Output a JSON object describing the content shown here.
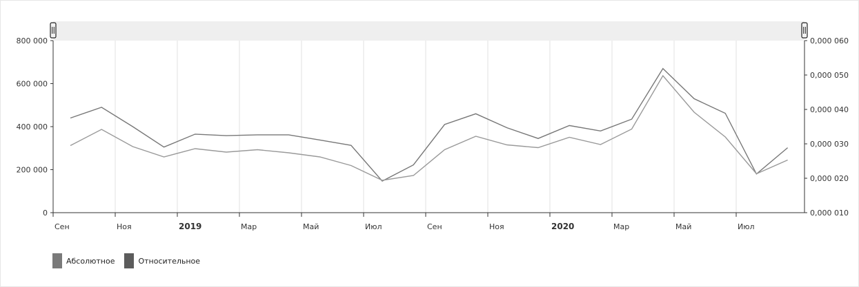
{
  "chart_data": {
    "type": "line",
    "x": [
      "2018-09",
      "2018-10",
      "2018-11",
      "2018-12",
      "2019-01",
      "2019-02",
      "2019-03",
      "2019-04",
      "2019-05",
      "2019-06",
      "2019-07",
      "2019-08",
      "2019-09",
      "2019-10",
      "2019-11",
      "2019-12",
      "2020-01",
      "2020-02",
      "2020-03",
      "2020-04",
      "2020-05",
      "2020-06",
      "2020-07",
      "2020-08"
    ],
    "x_tick_labels": [
      {
        "x": "2018-09",
        "label": "Сен",
        "bold": false
      },
      {
        "x": "2018-11",
        "label": "Ноя",
        "bold": false
      },
      {
        "x": "2019-01",
        "label": "2019",
        "bold": true
      },
      {
        "x": "2019-03",
        "label": "Мар",
        "bold": false
      },
      {
        "x": "2019-05",
        "label": "Май",
        "bold": false
      },
      {
        "x": "2019-07",
        "label": "Июл",
        "bold": false
      },
      {
        "x": "2019-09",
        "label": "Сен",
        "bold": false
      },
      {
        "x": "2019-11",
        "label": "Ноя",
        "bold": false
      },
      {
        "x": "2020-01",
        "label": "2020",
        "bold": true
      },
      {
        "x": "2020-03",
        "label": "Мар",
        "bold": false
      },
      {
        "x": "2020-05",
        "label": "Май",
        "bold": false
      },
      {
        "x": "2020-07",
        "label": "Июл",
        "bold": false
      }
    ],
    "y_left": {
      "ylim": [
        0,
        800000
      ],
      "ticks": [
        "0",
        "200 000",
        "400 000",
        "600 000",
        "800 000"
      ],
      "tick_values": [
        0,
        200000,
        400000,
        600000,
        800000
      ]
    },
    "y_right": {
      "ylim": [
        1e-05,
        6e-05
      ],
      "ticks": [
        "0,000 010",
        "0,000 020",
        "0,000 030",
        "0,000 040",
        "0,000 050",
        "0,000 060"
      ],
      "tick_values": [
        1e-05,
        2e-05,
        3e-05,
        4e-05,
        5e-05,
        6e-05
      ]
    },
    "series": [
      {
        "name": "Абсолютное",
        "axis": "left",
        "color": "#777777",
        "values": [
          440000,
          490000,
          400000,
          305000,
          365000,
          358000,
          362000,
          362000,
          338000,
          313000,
          147000,
          222000,
          410000,
          460000,
          395000,
          345000,
          405000,
          380000,
          435000,
          670000,
          530000,
          462000,
          180000,
          302000
        ]
      },
      {
        "name": "Относительное",
        "axis": "right",
        "color": "#999999",
        "values": [
          2.95e-05,
          3.42e-05,
          2.92e-05,
          2.62e-05,
          2.86e-05,
          2.76e-05,
          2.83e-05,
          2.74e-05,
          2.62e-05,
          2.37e-05,
          1.94e-05,
          2.08e-05,
          2.83e-05,
          3.22e-05,
          2.97e-05,
          2.89e-05,
          3.19e-05,
          2.98e-05,
          3.43e-05,
          4.98e-05,
          3.92e-05,
          3.2e-05,
          2.13e-05,
          2.53e-05
        ]
      }
    ],
    "grid": true,
    "legend_position": "bottom-left"
  },
  "legend": {
    "items": [
      {
        "label": "Абсолютное",
        "color": "#7a7a7a"
      },
      {
        "label": "Относительное",
        "color": "#5c5c5c"
      }
    ]
  },
  "navigator": {
    "left_handle_icon": "drag-handle-icon",
    "right_handle_icon": "drag-handle-icon"
  }
}
